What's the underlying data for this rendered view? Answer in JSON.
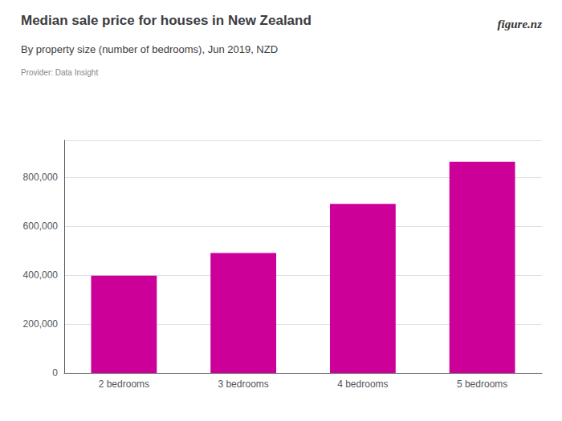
{
  "chart_data": {
    "type": "bar",
    "title": "Median sale price for houses in New Zealand",
    "subtitle": "By property size (number of bedrooms), Jun 2019, NZD",
    "annotations": [
      "Provider: Data Insight",
      "figure.nz"
    ],
    "categories": [
      "2 bedrooms",
      "3 bedrooms",
      "4 bedrooms",
      "5 bedrooms"
    ],
    "values": [
      397000,
      490000,
      690000,
      862000
    ],
    "color": "#cc0099",
    "ylim": [
      0,
      950000
    ],
    "yticks": [
      0,
      {
        "value": 200000,
        "label": "200,000"
      },
      {
        "value": 400000,
        "label": "400,000"
      },
      {
        "value": 600000,
        "label": "600,000"
      },
      {
        "value": 800000,
        "label": "800,000"
      }
    ],
    "grid": true
  }
}
